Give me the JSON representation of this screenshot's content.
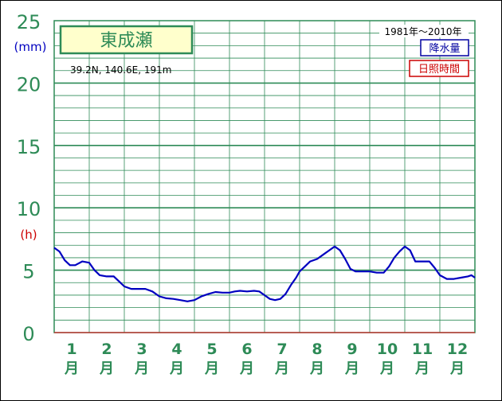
{
  "chart_data": {
    "type": "line",
    "title": "東成瀬",
    "location": "39.2N,  140.6E,  191m",
    "period": "1981年〜2010年",
    "legend": [
      {
        "label": "降水量",
        "color": "#0000a0"
      },
      {
        "label": "日照時間",
        "color": "#cc0000"
      }
    ],
    "left_unit_top": "(mm)",
    "left_unit_mid": "(h)",
    "y_ticks": [
      "0",
      "5",
      "10",
      "15",
      "20",
      "25"
    ],
    "ylim": [
      0,
      25
    ],
    "x_months": [
      {
        "num": "1",
        "label": "月"
      },
      {
        "num": "2",
        "label": "月"
      },
      {
        "num": "3",
        "label": "月"
      },
      {
        "num": "4",
        "label": "月"
      },
      {
        "num": "5",
        "label": "月"
      },
      {
        "num": "6",
        "label": "月"
      },
      {
        "num": "7",
        "label": "月"
      },
      {
        "num": "8",
        "label": "月"
      },
      {
        "num": "9",
        "label": "月"
      },
      {
        "num": "10",
        "label": "月"
      },
      {
        "num": "11",
        "label": "月"
      },
      {
        "num": "12",
        "label": "月"
      }
    ],
    "xlim": [
      0,
      12
    ],
    "series": [
      {
        "color": "#0000c0",
        "x": [
          0.0,
          0.15,
          0.3,
          0.45,
          0.6,
          0.8,
          1.0,
          1.15,
          1.3,
          1.5,
          1.7,
          1.85,
          2.0,
          2.2,
          2.4,
          2.6,
          2.8,
          3.0,
          3.2,
          3.4,
          3.6,
          3.8,
          4.0,
          4.2,
          4.4,
          4.6,
          4.8,
          5.0,
          5.15,
          5.3,
          5.5,
          5.7,
          5.85,
          6.0,
          6.15,
          6.3,
          6.45,
          6.6,
          6.75,
          6.9,
          7.0,
          7.15,
          7.3,
          7.5,
          7.7,
          7.85,
          8.0,
          8.15,
          8.3,
          8.45,
          8.6,
          8.8,
          9.0,
          9.2,
          9.4,
          9.55,
          9.7,
          9.85,
          10.0,
          10.15,
          10.3,
          10.5,
          10.7,
          10.85,
          11.0,
          11.2,
          11.4,
          11.6,
          11.8,
          11.9,
          12.0
        ],
        "y": [
          6.8,
          6.5,
          5.8,
          5.4,
          5.4,
          5.7,
          5.6,
          5.0,
          4.6,
          4.5,
          4.5,
          4.1,
          3.7,
          3.5,
          3.5,
          3.5,
          3.3,
          2.9,
          2.75,
          2.7,
          2.6,
          2.5,
          2.6,
          2.9,
          3.1,
          3.25,
          3.2,
          3.2,
          3.3,
          3.35,
          3.3,
          3.35,
          3.3,
          3.0,
          2.7,
          2.6,
          2.7,
          3.1,
          3.8,
          4.4,
          4.9,
          5.3,
          5.7,
          5.9,
          6.3,
          6.6,
          6.9,
          6.6,
          5.9,
          5.1,
          4.9,
          4.9,
          4.9,
          4.8,
          4.8,
          5.3,
          6.0,
          6.5,
          6.9,
          6.6,
          5.7,
          5.7,
          5.7,
          5.2,
          4.6,
          4.3,
          4.3,
          4.4,
          4.5,
          4.6,
          4.4
        ]
      }
    ]
  }
}
